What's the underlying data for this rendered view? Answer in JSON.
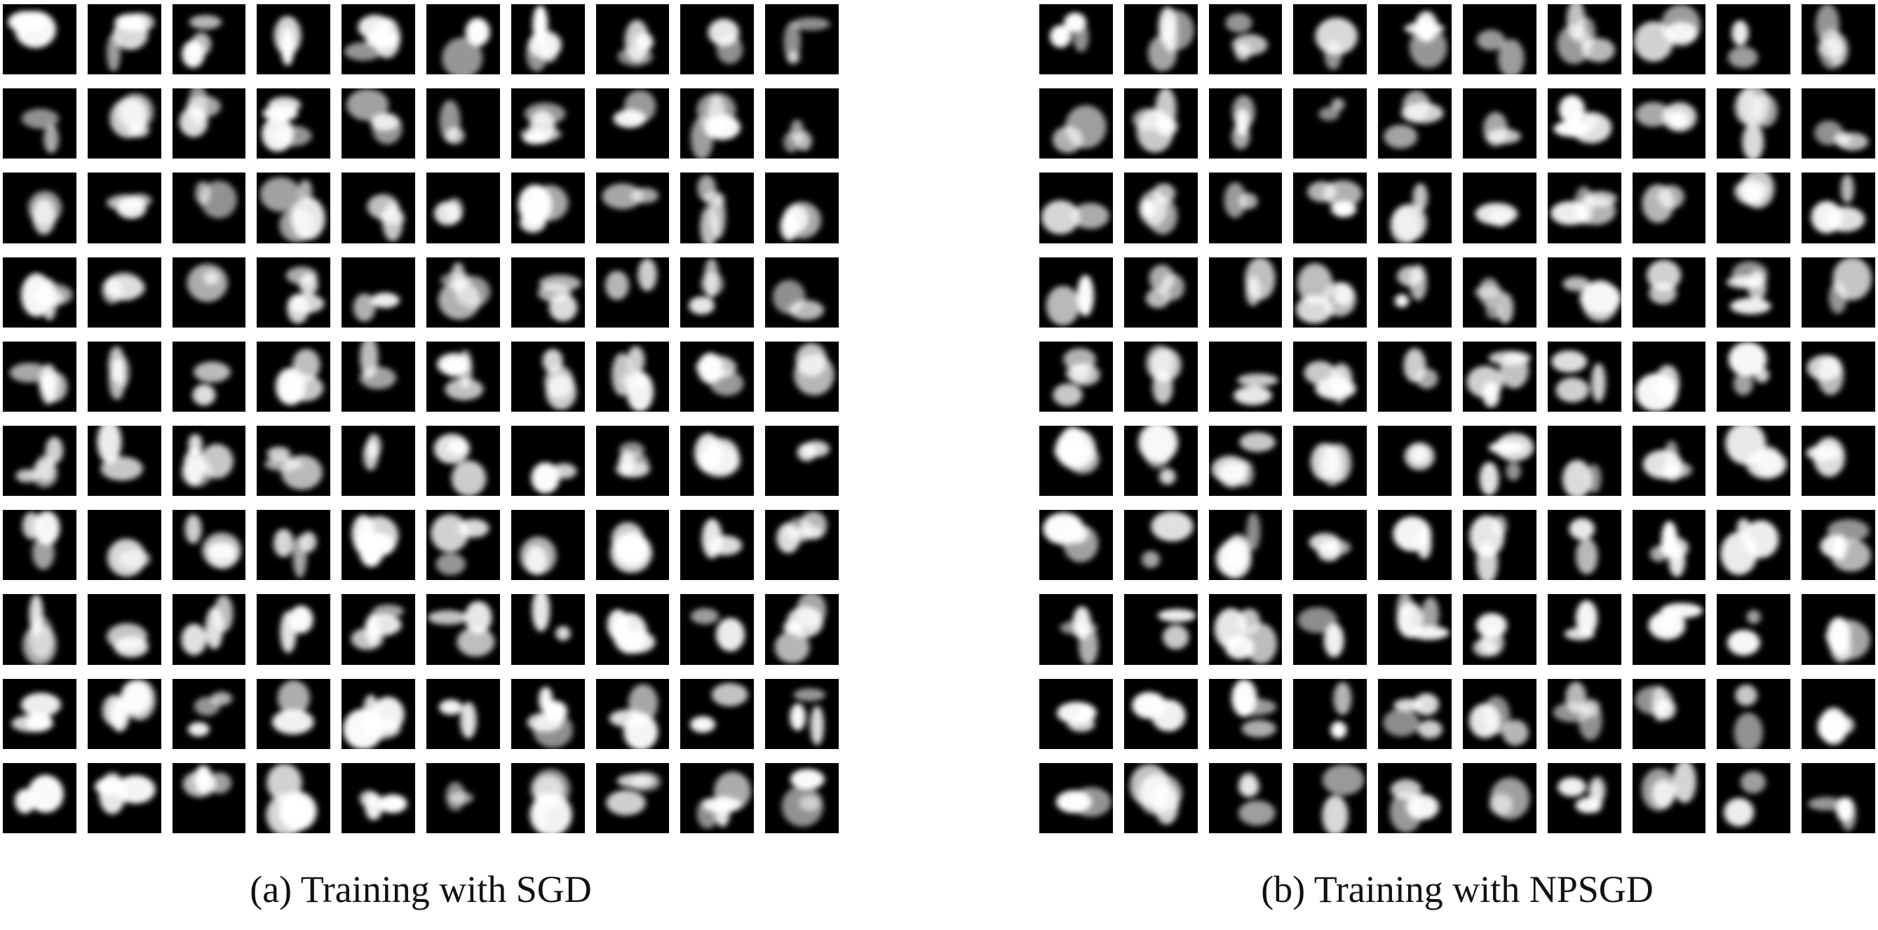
{
  "figure": {
    "panels": [
      {
        "id": "a",
        "caption": "(a) Training with SGD",
        "rows": 10,
        "cols": 10
      },
      {
        "id": "b",
        "caption": "(b) Training with NPSGD",
        "rows": 10,
        "cols": 10
      }
    ],
    "colors": {
      "tile_background": "#000000",
      "blob": "#ffffff",
      "page": "#ffffff"
    }
  }
}
